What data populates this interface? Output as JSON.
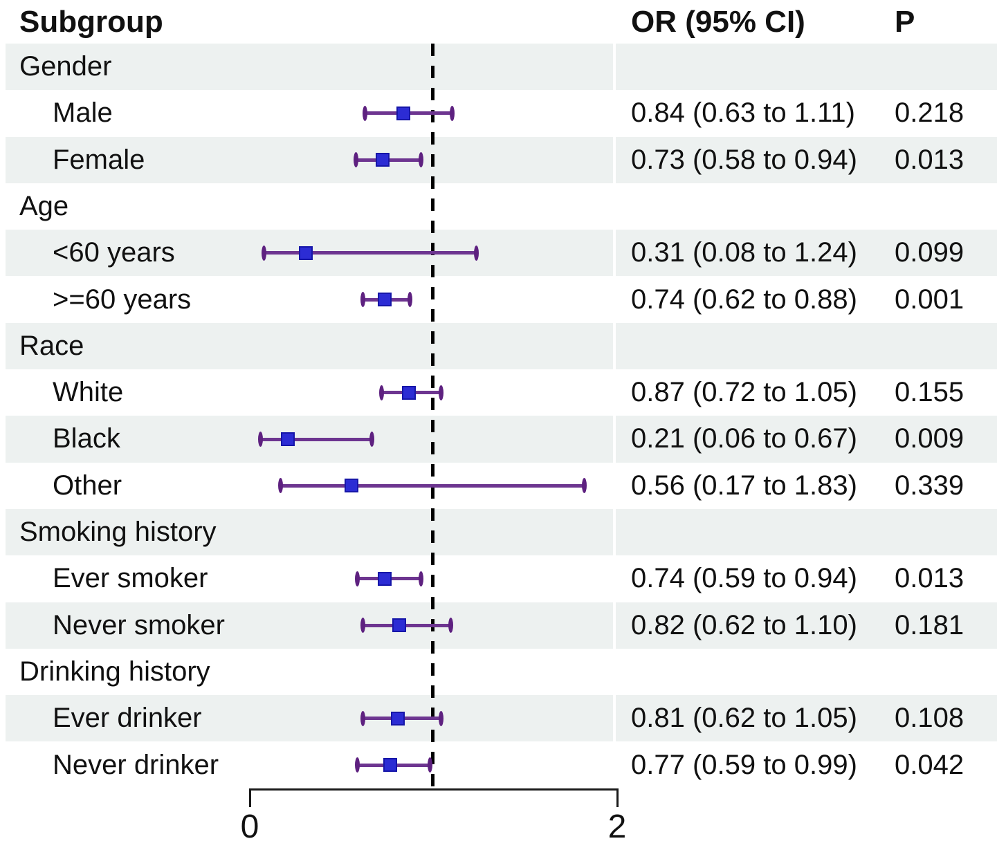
{
  "columns": {
    "subgroup": "Subgroup",
    "or_ci": "OR (95% CI)",
    "p": "P"
  },
  "chart_data": {
    "type": "forest",
    "title": "",
    "xlabel": "",
    "axis": {
      "min": 0,
      "max": 2,
      "tick_labels": [
        "0",
        "2"
      ],
      "tick_values": [
        0,
        2
      ],
      "reference_value": 1
    },
    "legend": "none",
    "rows": [
      {
        "label": "Gender",
        "indent": 0
      },
      {
        "label": "Male",
        "indent": 1,
        "or": 0.84,
        "ci_low": 0.63,
        "ci_high": 1.11,
        "or_ci_text": "0.84 (0.63 to 1.11)",
        "p": "0.218"
      },
      {
        "label": "Female",
        "indent": 1,
        "or": 0.73,
        "ci_low": 0.58,
        "ci_high": 0.94,
        "or_ci_text": "0.73 (0.58 to 0.94)",
        "p": "0.013"
      },
      {
        "label": "Age",
        "indent": 0
      },
      {
        "label": "<60 years",
        "indent": 1,
        "or": 0.31,
        "ci_low": 0.08,
        "ci_high": 1.24,
        "or_ci_text": "0.31 (0.08 to 1.24)",
        "p": "0.099"
      },
      {
        "label": ">=60 years",
        "indent": 1,
        "or": 0.74,
        "ci_low": 0.62,
        "ci_high": 0.88,
        "or_ci_text": "0.74 (0.62 to 0.88)",
        "p": "0.001"
      },
      {
        "label": "Race",
        "indent": 0
      },
      {
        "label": "White",
        "indent": 1,
        "or": 0.87,
        "ci_low": 0.72,
        "ci_high": 1.05,
        "or_ci_text": "0.87 (0.72 to 1.05)",
        "p": "0.155"
      },
      {
        "label": "Black",
        "indent": 1,
        "or": 0.21,
        "ci_low": 0.06,
        "ci_high": 0.67,
        "or_ci_text": "0.21 (0.06 to 0.67)",
        "p": "0.009"
      },
      {
        "label": "Other",
        "indent": 1,
        "or": 0.56,
        "ci_low": 0.17,
        "ci_high": 1.83,
        "or_ci_text": "0.56 (0.17 to 1.83)",
        "p": "0.339"
      },
      {
        "label": "Smoking history",
        "indent": 0
      },
      {
        "label": "Ever smoker",
        "indent": 1,
        "or": 0.74,
        "ci_low": 0.59,
        "ci_high": 0.94,
        "or_ci_text": "0.74 (0.59 to 0.94)",
        "p": "0.013"
      },
      {
        "label": "Never smoker",
        "indent": 1,
        "or": 0.82,
        "ci_low": 0.62,
        "ci_high": 1.1,
        "or_ci_text": "0.82 (0.62 to 1.10)",
        "p": "0.181"
      },
      {
        "label": "Drinking history",
        "indent": 0
      },
      {
        "label": "Ever drinker",
        "indent": 1,
        "or": 0.81,
        "ci_low": 0.62,
        "ci_high": 1.05,
        "or_ci_text": "0.81 (0.62 to 1.05)",
        "p": "0.108"
      },
      {
        "label": "Never drinker",
        "indent": 1,
        "or": 0.77,
        "ci_low": 0.59,
        "ci_high": 0.99,
        "or_ci_text": "0.77 (0.59 to 0.99)",
        "p": "0.042"
      }
    ],
    "colors": {
      "stripe": "#edf1f0",
      "ci_line": "#6d3590",
      "ci_cap": "#5e2180",
      "marker_fill": "#2c2cd4",
      "marker_border": "#1616a8",
      "reference_line": "#000000",
      "axis": "#1a1a1a",
      "text": "#111111"
    }
  }
}
